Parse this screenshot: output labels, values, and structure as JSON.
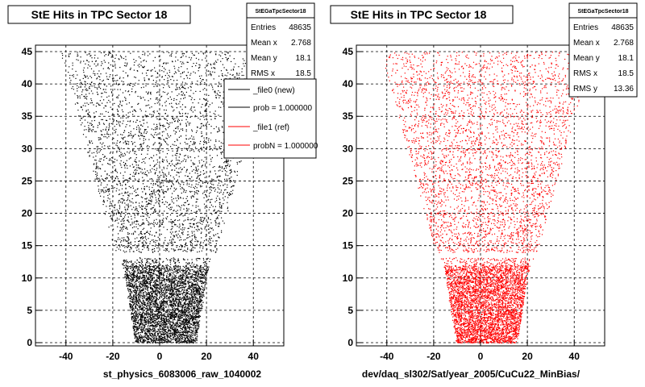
{
  "chart_data": [
    {
      "type": "scatter",
      "title": "StE Hits in TPC Sector 18",
      "xlabel": "st_physics_6083006_raw_1040002",
      "ylabel": "",
      "xlim": [
        -53,
        53
      ],
      "ylim": [
        -0.5,
        46
      ],
      "xticks": [
        -40,
        -20,
        0,
        20,
        40
      ],
      "yticks": [
        0,
        5,
        10,
        15,
        20,
        25,
        30,
        35,
        40,
        45
      ],
      "grid": true,
      "color": "#000000",
      "stats": {
        "title": "StEGaTpcSector18",
        "rows": [
          {
            "label": "Entries",
            "value": "48635"
          },
          {
            "label": "Mean x",
            "value": "2.768"
          },
          {
            "label": "Mean y",
            "value": "18.1"
          },
          {
            "label": "RMS x",
            "value": "18.5"
          }
        ]
      },
      "legend": {
        "placement": "top-right",
        "entries": [
          {
            "label": "_file0 (new)",
            "color": "#000000"
          },
          {
            "label": "prob = 1.000000",
            "color": "#000000"
          },
          {
            "label": "_file1 (ref)",
            "color": "#ff0000"
          },
          {
            "label": "probN = 1.000000",
            "color": "#ff0000"
          }
        ]
      }
    },
    {
      "type": "scatter",
      "title": "StE Hits in TPC Sector 18",
      "xlabel": "dev/daq_sl302/Sat/year_2005/CuCu22_MinBias/",
      "ylabel": "",
      "xlim": [
        -53,
        53
      ],
      "ylim": [
        -0.5,
        46
      ],
      "xticks": [
        -40,
        -20,
        0,
        20,
        40
      ],
      "yticks": [
        0,
        5,
        10,
        15,
        20,
        25,
        30,
        35,
        40,
        45
      ],
      "grid": true,
      "color": "#ff0000",
      "stats": {
        "title": "StEGaTpcSector18",
        "rows": [
          {
            "label": "Entries",
            "value": "48635"
          },
          {
            "label": "Mean x",
            "value": "2.768"
          },
          {
            "label": "Mean y",
            "value": "18.1"
          },
          {
            "label": "RMS x",
            "value": "18.5"
          },
          {
            "label": "RMS y",
            "value": "13.36"
          }
        ]
      }
    }
  ]
}
